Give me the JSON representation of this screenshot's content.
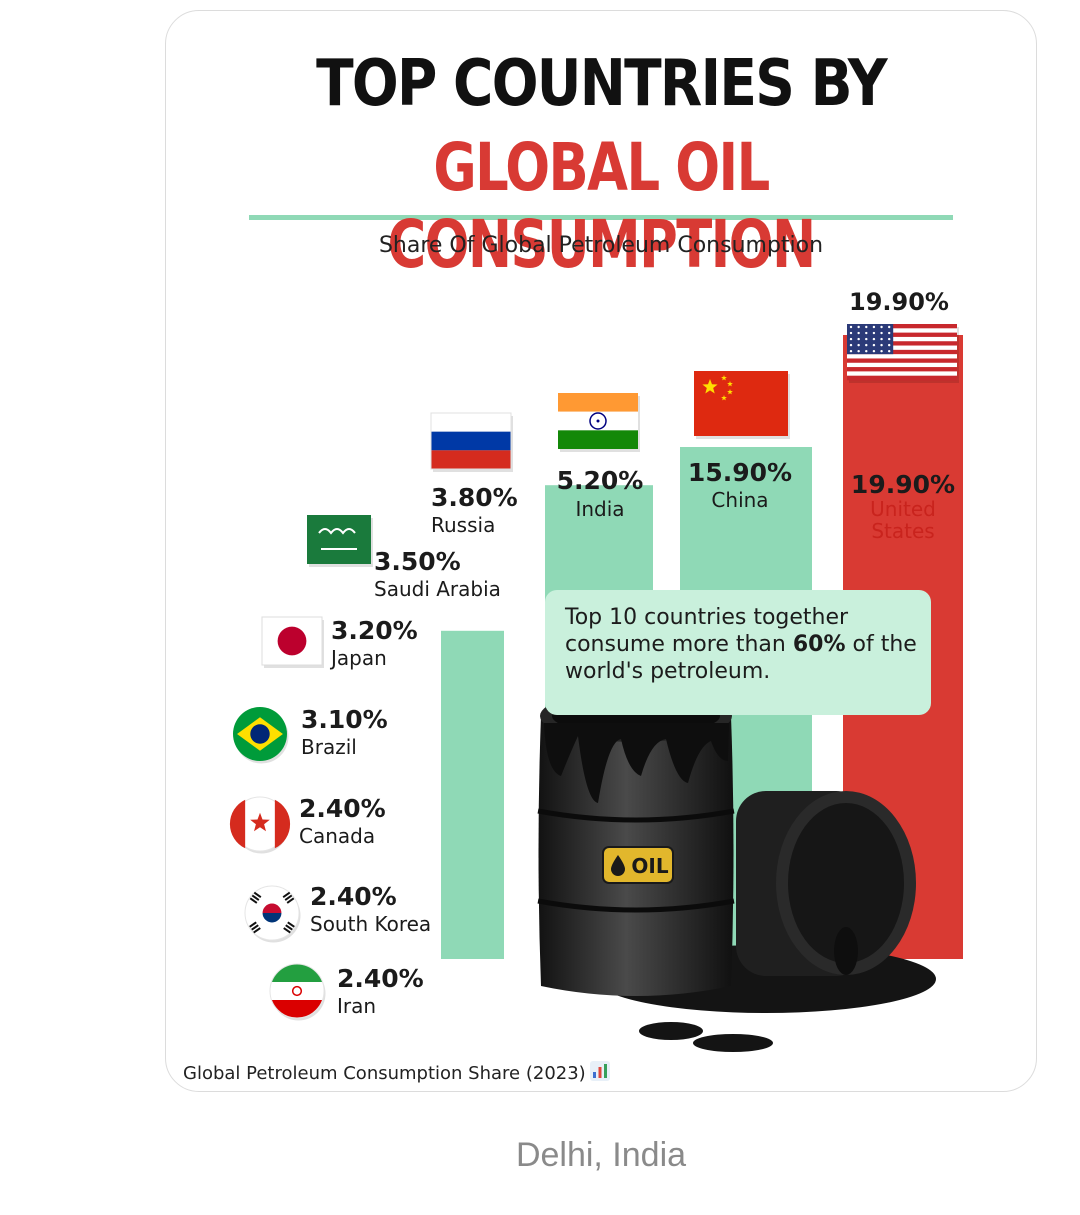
{
  "header": {
    "title_line1": "TOP COUNTRIES BY",
    "title_line2": "GLOBAL OIL CONSUMPTION",
    "subtitle": "Share Of Global Petroleum Consumption"
  },
  "callout": {
    "prefix": "Top 10 countries together consume more than ",
    "highlight": "60%",
    "suffix": " of the world's petroleum."
  },
  "footer": {
    "text": "Global Petroleum Consumption Share (2023)",
    "icon": "bar-chart-icon"
  },
  "location": "Delhi, India",
  "colors": {
    "bar_green": "#8fd9b6",
    "bar_red": "#d93a33",
    "title_red": "#d83a34",
    "callout_bg": "#c9f0dc"
  },
  "chart_data": {
    "type": "bar",
    "title": "TOP COUNTRIES BY GLOBAL OIL CONSUMPTION",
    "subtitle": "Share Of Global Petroleum Consumption",
    "unit": "%",
    "categories": [
      "United States",
      "China",
      "India",
      "Russia",
      "Saudi Arabia",
      "Japan",
      "Brazil",
      "Canada",
      "South Korea",
      "Iran"
    ],
    "values": [
      19.9,
      15.9,
      5.2,
      3.8,
      3.5,
      3.2,
      3.1,
      2.4,
      2.4,
      2.4
    ],
    "value_labels": [
      "19.90%",
      "15.90%",
      "5.20%",
      "3.80%",
      "3.50%",
      "3.20%",
      "3.10%",
      "2.40%",
      "2.40%",
      "2.40%"
    ],
    "top_value_label": "19.90%",
    "items": [
      {
        "label": "United States",
        "label_lines": [
          "United",
          "States"
        ],
        "value": 19.9,
        "value_label": "19.90%",
        "flag": "us-flag-icon",
        "kind": "bar",
        "color": "#d93a33"
      },
      {
        "label": "China",
        "label_lines": [
          "China"
        ],
        "value": 15.9,
        "value_label": "15.90%",
        "flag": "china-flag-icon",
        "kind": "bar",
        "color": "#8fd9b6"
      },
      {
        "label": "India",
        "label_lines": [
          "India"
        ],
        "value": 5.2,
        "value_label": "5.20%",
        "flag": "india-flag-icon",
        "kind": "bar",
        "color": "#8fd9b6"
      },
      {
        "label": "Russia",
        "label_lines": [
          "Russia"
        ],
        "value": 3.8,
        "value_label": "3.80%",
        "flag": "russia-flag-icon",
        "kind": "bar",
        "color": "#8fd9b6"
      },
      {
        "label": "Saudi Arabia",
        "label_lines": [
          "Saudi Arabia"
        ],
        "value": 3.5,
        "value_label": "3.50%",
        "flag": "saudi-flag-icon",
        "kind": "flag-item"
      },
      {
        "label": "Japan",
        "label_lines": [
          "Japan"
        ],
        "value": 3.2,
        "value_label": "3.20%",
        "flag": "japan-flag-icon",
        "kind": "flag-item"
      },
      {
        "label": "Brazil",
        "label_lines": [
          "Brazil"
        ],
        "value": 3.1,
        "value_label": "3.10%",
        "flag": "brazil-flag-icon",
        "kind": "flag-item"
      },
      {
        "label": "Canada",
        "label_lines": [
          "Canada"
        ],
        "value": 2.4,
        "value_label": "2.40%",
        "flag": "canada-flag-icon",
        "kind": "flag-item"
      },
      {
        "label": "South Korea",
        "label_lines": [
          "South Korea"
        ],
        "value": 2.4,
        "value_label": "2.40%",
        "flag": "south-korea-flag-icon",
        "kind": "flag-item"
      },
      {
        "label": "Iran",
        "label_lines": [
          "Iran"
        ],
        "value": 2.4,
        "value_label": "2.40%",
        "flag": "iran-flag-icon",
        "kind": "flag-item"
      }
    ],
    "barrel_label": "OIL"
  }
}
